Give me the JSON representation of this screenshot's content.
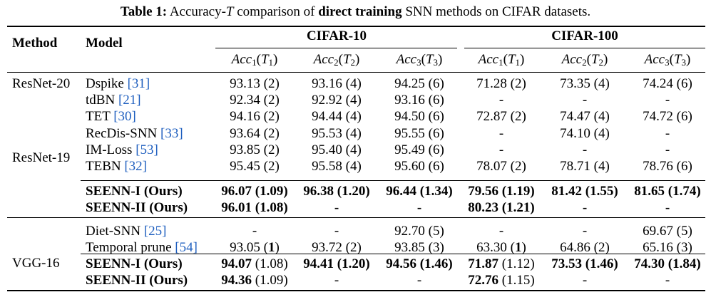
{
  "caption": {
    "label": "Table 1:",
    "pre": "Accuracy-",
    "var": "T",
    "mid": "comparison of",
    "bold": "direct training",
    "post": "SNN methods on CIFAR datasets."
  },
  "header": {
    "method": "Method",
    "model": "Model",
    "datasets": [
      "CIFAR-10",
      "CIFAR-100"
    ],
    "metrics": [
      {
        "acc": "Acc",
        "sub": "1",
        "t": "T",
        "tsub": "1"
      },
      {
        "acc": "Acc",
        "sub": "2",
        "t": "T",
        "tsub": "2"
      },
      {
        "acc": "Acc",
        "sub": "3",
        "t": "T",
        "tsub": "3"
      }
    ]
  },
  "groups": [
    {
      "methods": [
        "ResNet-20",
        "ResNet-19"
      ],
      "rows": [
        {
          "name": "Dspike",
          "ref": "[31]",
          "vals": [
            "93.13 (2)",
            "93.16 (4)",
            "94.25 (6)",
            "71.28 (2)",
            "73.35 (4)",
            "74.24 (6)"
          ]
        },
        {
          "name": "tdBN",
          "ref": "[21]",
          "vals": [
            "92.34 (2)",
            "92.92 (4)",
            "93.16 (6)",
            "-",
            "-",
            "-"
          ]
        },
        {
          "name": "TET",
          "ref": "[30]",
          "vals": [
            "94.16 (2)",
            "94.44 (4)",
            "94.50 (6)",
            "72.87 (2)",
            "74.47 (4)",
            "74.72 (6)"
          ]
        },
        {
          "name": "RecDis-SNN",
          "ref": "[33]",
          "vals": [
            "93.64 (2)",
            "95.53 (4)",
            "95.55 (6)",
            "-",
            "74.10 (4)",
            "-"
          ]
        },
        {
          "name": "IM-Loss",
          "ref": "[53]",
          "vals": [
            "93.85 (2)",
            "95.40 (4)",
            "95.49 (6)",
            "-",
            "-",
            "-"
          ]
        },
        {
          "name": "TEBN",
          "ref": "[32]",
          "vals": [
            "95.45 (2)",
            "95.58 (4)",
            "95.60 (6)",
            "78.07 (2)",
            "78.71 (4)",
            "78.76 (6)"
          ]
        }
      ],
      "ours": [
        {
          "name": "SEENN-I (Ours)",
          "vals": [
            "96.07 (1.09)",
            "96.38 (1.20)",
            "96.44 (1.34)",
            "79.56 (1.19)",
            "81.42 (1.55)",
            "81.65 (1.74)"
          ]
        },
        {
          "name": "SEENN-II (Ours)",
          "vals": [
            "96.01 (1.08)",
            "-",
            "-",
            "80.23 (1.21)",
            "-",
            "-"
          ]
        }
      ]
    },
    {
      "methods": [
        "VGG-16"
      ],
      "rows": [
        {
          "name": "Diet-SNN",
          "ref": "[25]",
          "vals": [
            "-",
            "-",
            "92.70 (5)",
            "-",
            "-",
            "69.67 (5)"
          ]
        },
        {
          "name": "Temporal prune",
          "ref": "[54]",
          "vals": [
            "93.05 (1)",
            "93.72 (2)",
            "93.85 (3)",
            "63.30 (1)",
            "64.86 (2)",
            "65.16 (3)"
          ]
        }
      ],
      "ours": [
        {
          "name": "SEENN-I (Ours)",
          "vals": [
            "94.07 (1.08)",
            "94.41 (1.20)",
            "94.56 (1.46)",
            "71.87 (1.12)",
            "73.53 (1.46)",
            "74.30 (1.84)"
          ]
        },
        {
          "name": "SEENN-II (Ours)",
          "vals": [
            "94.36 (1.09)",
            "-",
            "-",
            "72.76 (1.15)",
            "-",
            "-"
          ]
        }
      ]
    }
  ]
}
